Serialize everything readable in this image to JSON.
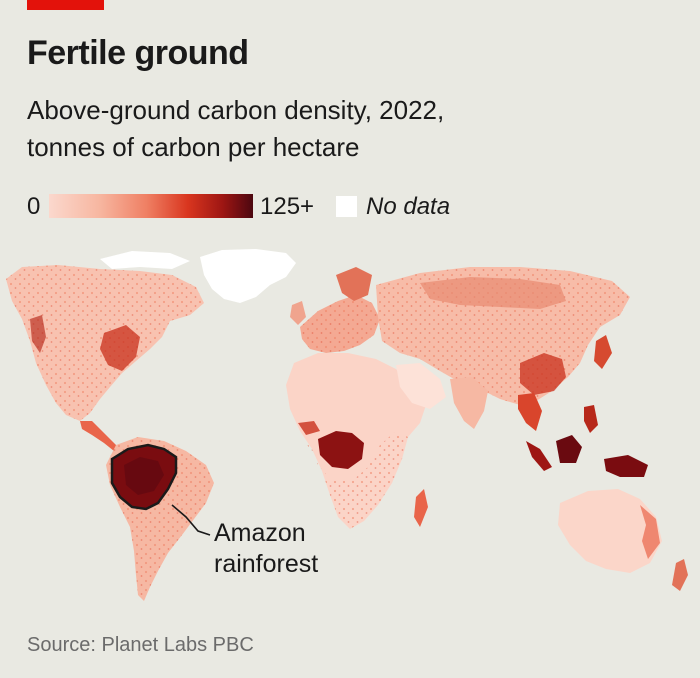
{
  "header": {
    "title": "Fertile ground",
    "subtitle_line1": "Above-ground carbon density, 2022,",
    "subtitle_line2": "tonnes of carbon per hectare"
  },
  "legend": {
    "min_label": "0",
    "max_label": "125+",
    "no_data_label": "No data",
    "scale_colors": [
      "#fbd8cd",
      "#f7b6a0",
      "#ef7f63",
      "#d9361f",
      "#9e1613",
      "#4c0710"
    ],
    "no_data_color": "#ffffff"
  },
  "annotation": {
    "line1": "Amazon",
    "line2": "rainforest"
  },
  "source": "Source: Planet Labs PBC",
  "colors": {
    "accent": "#e3120b",
    "background": "#e9e9e2",
    "land_low": "#fbd8cd",
    "land_mid": "#ef7f63",
    "land_high": "#9e1613",
    "land_max": "#4c0710"
  }
}
